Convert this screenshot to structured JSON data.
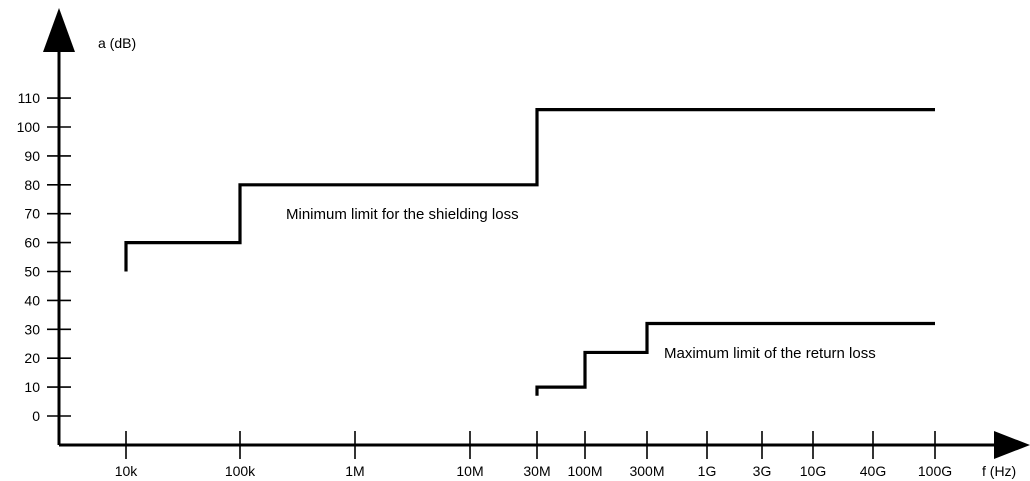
{
  "chart_data": {
    "type": "line",
    "title": "",
    "ylabel": "a (dB)",
    "xlabel": "f (Hz)",
    "x_categories": [
      "10k",
      "100k",
      "1M",
      "10M",
      "30M",
      "100M",
      "300M",
      "1G",
      "3G",
      "10G",
      "40G",
      "100G"
    ],
    "y_ticks": [
      0,
      10,
      20,
      30,
      40,
      50,
      60,
      70,
      80,
      90,
      100,
      110
    ],
    "ylim": [
      -5,
      120
    ],
    "grid": false,
    "series": [
      {
        "name": "",
        "points": [
          [
            "10k",
            50
          ],
          [
            "10k",
            60
          ],
          [
            "100k",
            60
          ],
          [
            "100k",
            80
          ],
          [
            "30M",
            80
          ],
          [
            "30M",
            106
          ],
          [
            "100G",
            106
          ]
        ]
      },
      {
        "name": "",
        "points": [
          [
            "30M",
            7
          ],
          [
            "30M",
            10
          ],
          [
            "100M",
            10
          ],
          [
            "100M",
            22
          ],
          [
            "300M",
            22
          ],
          [
            "300M",
            32
          ],
          [
            "100G",
            32
          ]
        ]
      }
    ],
    "annotations": [
      {
        "text": "Minimum limit for the shielding loss"
      },
      {
        "text": "Maximum limit of the return loss"
      }
    ]
  }
}
